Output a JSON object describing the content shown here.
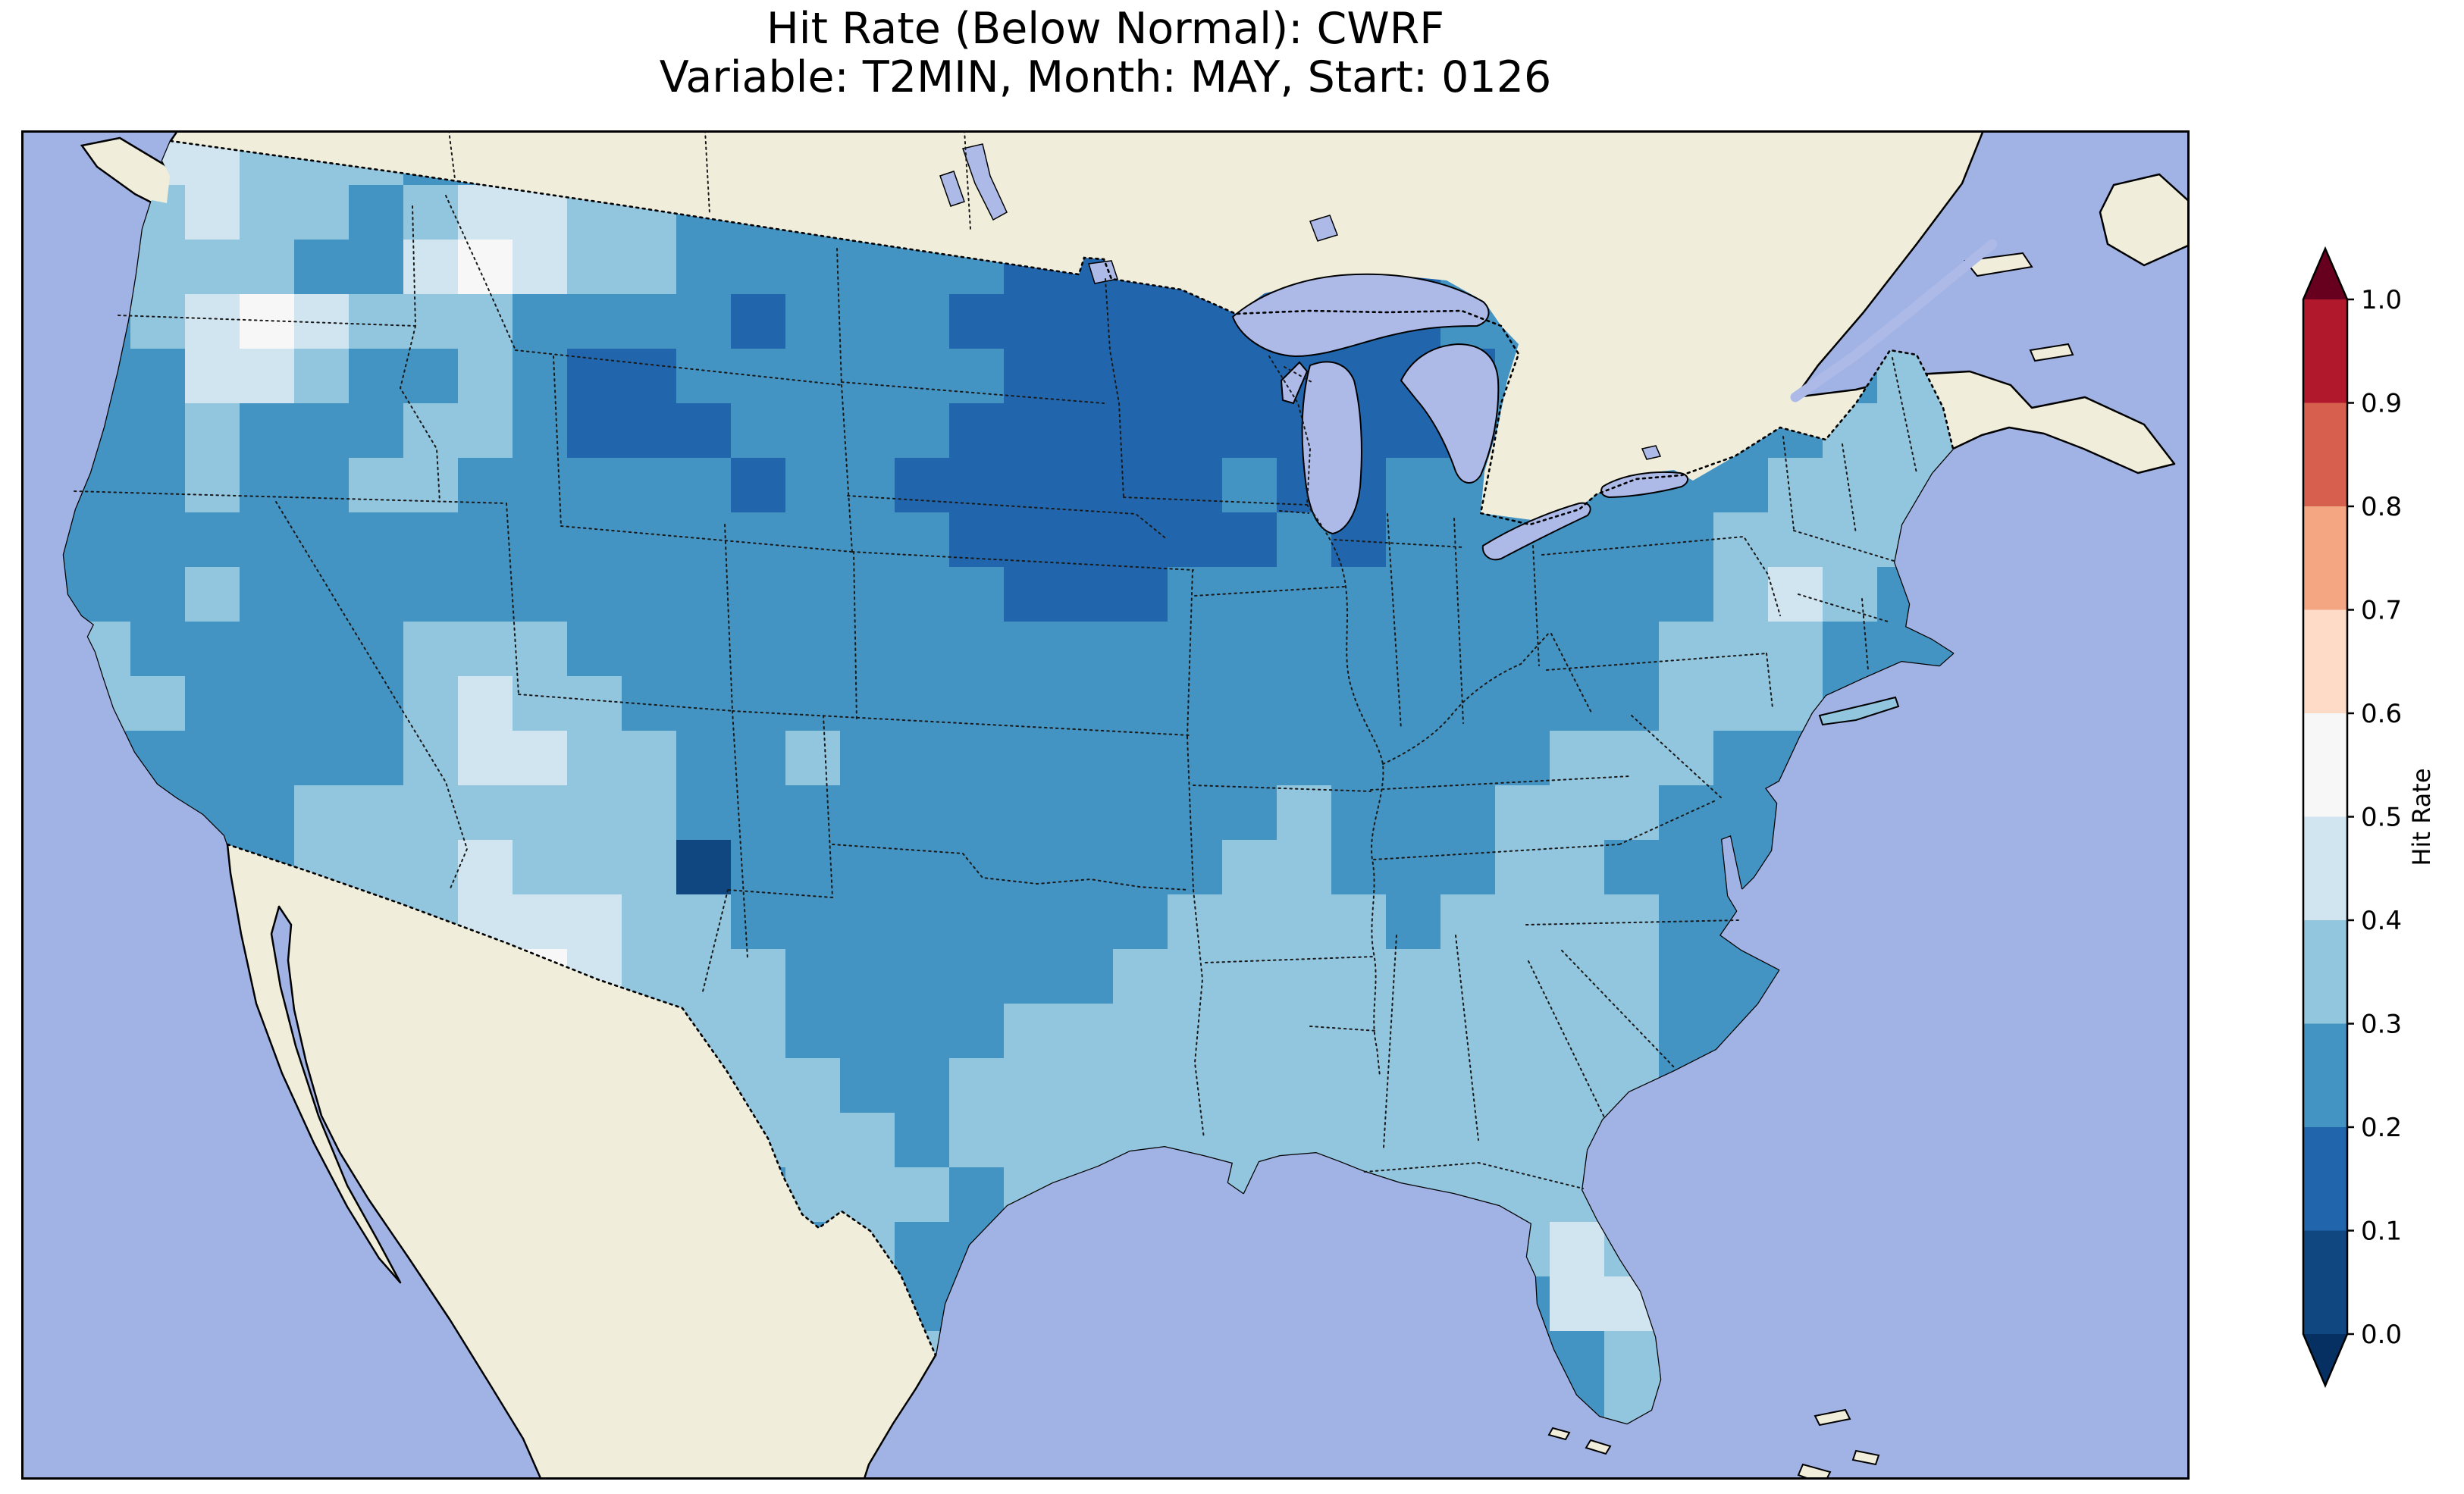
{
  "figure": {
    "title_line1": "Hit Rate (Below Normal): CWRF",
    "title_line2": "Variable: T2MIN, Month: MAY, Start: 0126"
  },
  "map": {
    "ocean_color": "#a1b3e4",
    "land_color": "#f0eedb",
    "lake_color": "#adbae8",
    "coast_color": "#000000"
  },
  "colorbar": {
    "label": "Hit Rate",
    "tick_labels": [
      "1.0",
      "0.9",
      "0.8",
      "0.7",
      "0.6",
      "0.5",
      "0.4",
      "0.3",
      "0.2",
      "0.1",
      "0.0"
    ],
    "segment_colors_top_to_bottom": [
      "#b2182b",
      "#d6604d",
      "#f4a582",
      "#fddbc7",
      "#f7f7f7",
      "#d1e5f0",
      "#92c5de",
      "#4393c3",
      "#2166ac",
      "#114781"
    ],
    "arrow_over_color": "#67001f",
    "arrow_under_color": "#053061"
  },
  "chart_data": {
    "type": "heatmap",
    "metric": "Hit Rate (Below Normal)",
    "model": "CWRF",
    "variable": "T2MIN",
    "month": "MAY",
    "start": "0126",
    "colorbar_label": "Hit Rate",
    "value_range": [
      0.0,
      1.0
    ],
    "bins": {
      "a": "0.0-0.1",
      "1": "0.1-0.2",
      "2": "0.2-0.3",
      "3": "0.3-0.4",
      "4": "0.4-0.5",
      "5": "0.5-0.6"
    },
    "bin_colors": {
      "a": "#114781",
      "1": "#2166ac",
      "2": "#4393c3",
      "3": "#92c5de",
      "4": "#d1e5f0",
      "5": "#f7f7f7"
    },
    "cell_size_px": 72,
    "grid_cols": 40,
    "grid_rows": 25,
    "grid": [
      "3344333222222222222211111222222222222222",
      "3334332344332222222121111122222223332222",
      "3333322454332222221111111122222223342222",
      "2234543332222122211111111122222223332222",
      "2224432232112222221111111112222222332222",
      "2223222332111222211111111112222223332222",
      "2223223322222122111111211222222233332222",
      "2222222222222222211111121222222333332222",
      "2223222222222222221112222222222343222222",
      "3322222333222222222222222222223332222222",
      "3332222343322222222222222222223332222222",
      "2222222344332232222222222222333222222222",
      "2222233333332222222222232223332222222222",
      "222223334333a222222222332223322222222222",
      "2222223344433222222223333233332222222222",
      "2222222345433322222233333333332222222222",
      "2222222234333322223333333333332222222222",
      "2222222223333332233333333333332222222222",
      "2222222222223333233333333333332222222222",
      "2222222222222233323333333333332222222222",
      "2222222222222223222222222223432222222222",
      "2222222222222222222222222222443222222222",
      "2222222222222222322222222222233222222222",
      "2222222222222222222222222222233222222222",
      "2222222222222222222222222222222222222222"
    ]
  }
}
